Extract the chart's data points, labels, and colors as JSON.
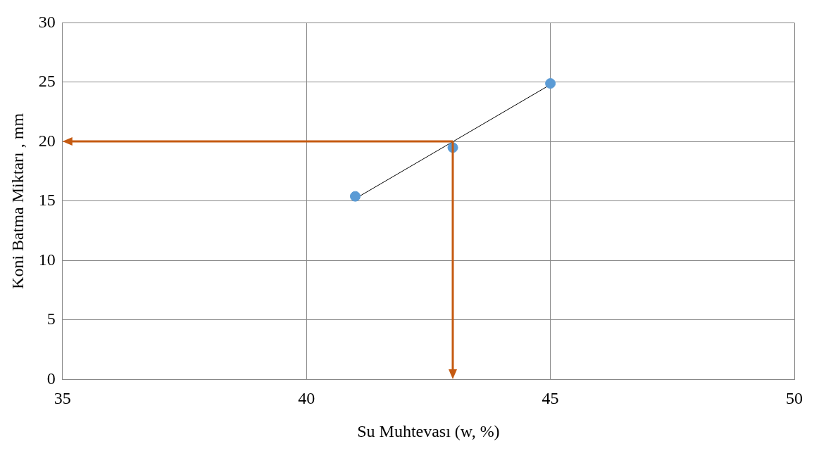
{
  "chart_data": {
    "type": "scatter",
    "xlabel": "Su Muhtevası (w, %)",
    "ylabel": "Koni Batma Miktarı , mm",
    "xlim": [
      35,
      50
    ],
    "xticks": [
      35,
      40,
      45,
      50
    ],
    "ylim": [
      0,
      30
    ],
    "yticks": [
      0,
      5,
      10,
      15,
      20,
      25,
      30
    ],
    "grid": true,
    "legend": false,
    "marker": "circle",
    "series": [
      {
        "color": "#5b9bd5",
        "x": [
          41,
          43,
          45
        ],
        "values": [
          15.4,
          19.5,
          24.9
        ]
      },
      {
        "type": "line",
        "color": "#000000",
        "marker": "none",
        "x": [
          41,
          45
        ],
        "values": [
          15.2,
          24.8
        ]
      }
    ],
    "ref_lines": [
      {
        "axis": "y",
        "value": 20,
        "color": "#c55a11"
      },
      {
        "axis": "x",
        "value": 43,
        "color": "#c55a11"
      }
    ]
  }
}
